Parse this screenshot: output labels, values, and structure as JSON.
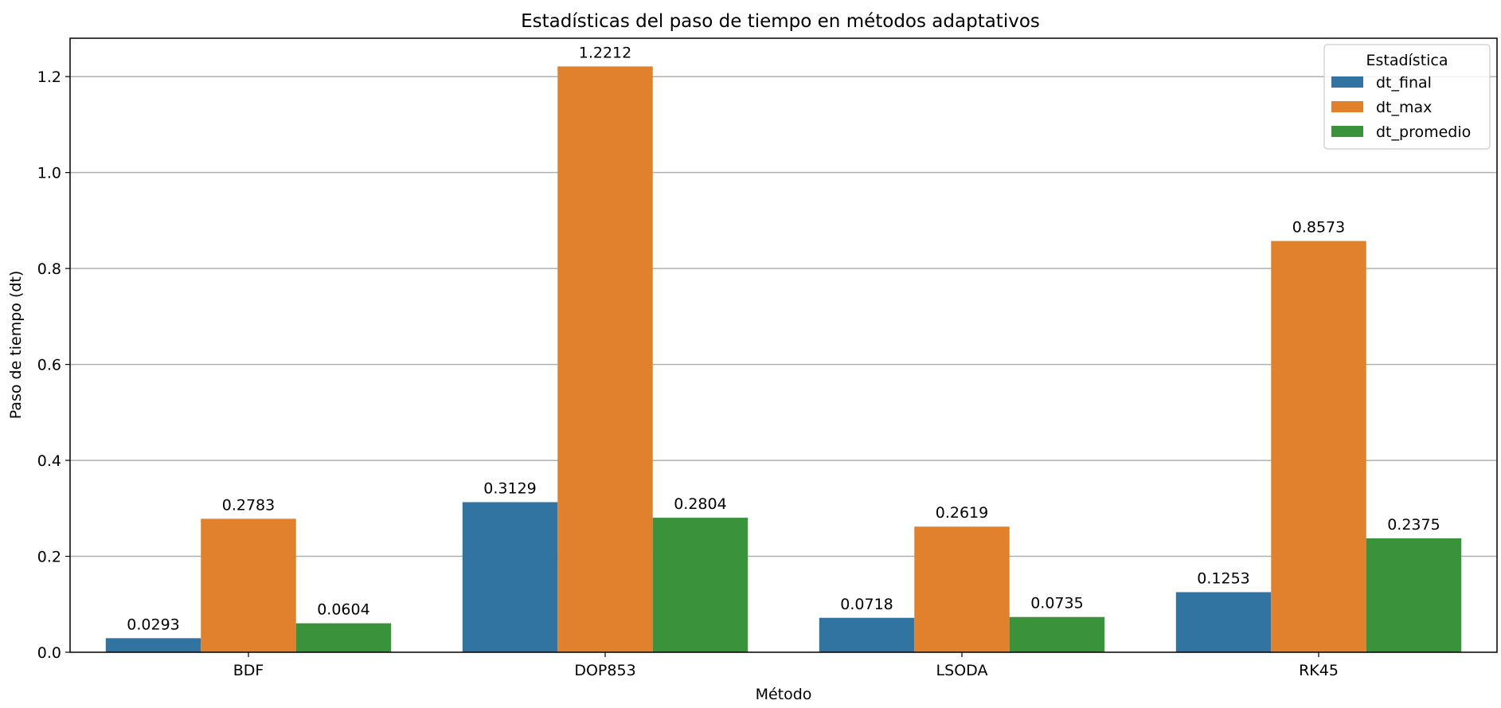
{
  "chart_data": {
    "type": "bar",
    "title": "Estadísticas del paso de tiempo en métodos adaptativos",
    "xlabel": "Método",
    "ylabel": "Paso de tiempo (dt)",
    "categories": [
      "BDF",
      "DOP853",
      "LSODA",
      "RK45"
    ],
    "series": [
      {
        "name": "dt_final",
        "color": "#3274a1",
        "values": [
          0.0293,
          0.3129,
          0.0718,
          0.1253
        ],
        "labels": [
          "0.0293",
          "0.3129",
          "0.0718",
          "0.1253"
        ]
      },
      {
        "name": "dt_max",
        "color": "#e1812c",
        "values": [
          0.2783,
          1.2212,
          0.2619,
          0.8573
        ],
        "labels": [
          "0.2783",
          "1.2212",
          "0.2619",
          "0.8573"
        ]
      },
      {
        "name": "dt_promedio",
        "color": "#3a923a",
        "values": [
          0.0604,
          0.2804,
          0.0735,
          0.2375
        ],
        "labels": [
          "0.0604",
          "0.2804",
          "0.0735",
          "0.2375"
        ]
      }
    ],
    "ylim": [
      0,
      1.28
    ],
    "yticks": [
      "0.0",
      "0.2",
      "0.4",
      "0.6",
      "0.8",
      "1.0",
      "1.2"
    ],
    "grid": "y",
    "legend": {
      "title": "Estadística",
      "placement": "top-right"
    }
  }
}
